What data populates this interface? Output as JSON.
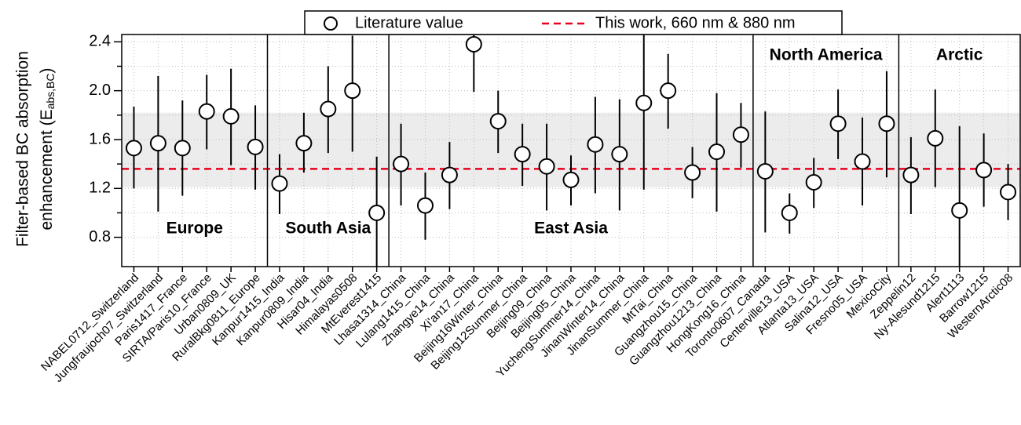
{
  "chart_data": {
    "type": "errorpoint",
    "ylabel": {
      "line1": "Filter-based BC absorption",
      "line2_main": "enhancement (E",
      "line2_sub": "abs,BC",
      "line2_end": ")"
    },
    "groups": [
      {
        "label": "Europe",
        "label_position": "bottom",
        "categories": [
          "NABEL0712_Switzerland",
          "Jungfraujoch07_Switzerland",
          "Paris1417_France",
          "SIRTA/Paris10_France",
          "Urban0809_UK",
          "RuralBkg0811_Europe"
        ]
      },
      {
        "label": "South Asia",
        "label_position": "bottom",
        "categories": [
          "Kanpur1415_India",
          "Kanpur0809_India",
          "Hisar04_India",
          "Himalayas0508",
          "MtEverest1415"
        ]
      },
      {
        "label": "East Asia",
        "label_position": "bottom",
        "categories": [
          "Lhasa1314_China",
          "Lulang1415_China",
          "Zhangye14_China",
          "Xi'an17_China",
          "Beijing16Winter_China",
          "Beijing12Summer_China",
          "Beijing09_China",
          "Beijing05_China",
          "YuchengSummer14_China",
          "JinanWinter14_China",
          "JinanSummer_China",
          "MtTai_China",
          "Guangzhou15_China",
          "Guangzhou1213_China",
          "HongKong16_China"
        ]
      },
      {
        "label": "North America",
        "label_position": "top",
        "categories": [
          "Toronto0607_Canada",
          "Centerville13_USA",
          "Atlanta13_USA",
          "Salina12_USA",
          "Fresno05_USA",
          "MexicoCity"
        ]
      },
      {
        "label": "Arctic",
        "label_position": "top",
        "categories": [
          "Zeppelin12",
          "Ny-Alesund1215",
          "Alert1113",
          "Barrow1215",
          "WesternArctic08"
        ]
      }
    ],
    "series": [
      {
        "name": "Literature value",
        "color": "#000000",
        "values": [
          1.53,
          1.57,
          1.53,
          1.83,
          1.79,
          1.54,
          1.24,
          1.57,
          1.85,
          2.0,
          1.0,
          1.4,
          1.06,
          1.31,
          2.38,
          1.75,
          1.48,
          1.38,
          1.27,
          1.56,
          1.48,
          1.9,
          2.0,
          1.33,
          1.5,
          1.64,
          1.34,
          1.0,
          1.25,
          1.73,
          1.42,
          1.73,
          1.31,
          1.61,
          1.02,
          1.35,
          1.17
        ],
        "lower": [
          1.2,
          1.01,
          1.14,
          1.52,
          1.39,
          1.19,
          0.99,
          1.33,
          1.49,
          1.5,
          0.56,
          1.06,
          0.78,
          1.03,
          1.99,
          1.49,
          1.22,
          1.02,
          1.06,
          1.16,
          1.02,
          1.19,
          1.69,
          1.12,
          1.01,
          1.37,
          0.84,
          0.83,
          1.04,
          1.44,
          1.06,
          1.29,
          0.99,
          1.21,
          0.56,
          1.05,
          0.94
        ],
        "upper": [
          1.87,
          2.12,
          1.92,
          2.13,
          2.18,
          1.88,
          1.48,
          1.82,
          2.2,
          2.45,
          1.46,
          1.73,
          1.33,
          1.58,
          2.46,
          2.0,
          1.73,
          1.73,
          1.47,
          1.95,
          1.93,
          2.46,
          2.3,
          1.54,
          1.98,
          1.9,
          1.83,
          1.16,
          1.45,
          2.01,
          1.78,
          2.16,
          1.62,
          2.01,
          1.71,
          1.65,
          1.4
        ]
      }
    ],
    "reference": {
      "name": "This work, 660 nm & 880 nm",
      "value": 1.36,
      "color": "#e8001c",
      "band_lower": 1.21,
      "band_upper": 1.82,
      "band_color": "#ececec"
    },
    "ylim": [
      0.56,
      2.46
    ],
    "yticks": [
      0.8,
      1.2,
      1.6,
      {
        "value": 2,
        "label": "2.0"
      },
      2.4
    ],
    "yminor": [
      1.0,
      1.4,
      1.8,
      2.2
    ],
    "grid": true
  }
}
